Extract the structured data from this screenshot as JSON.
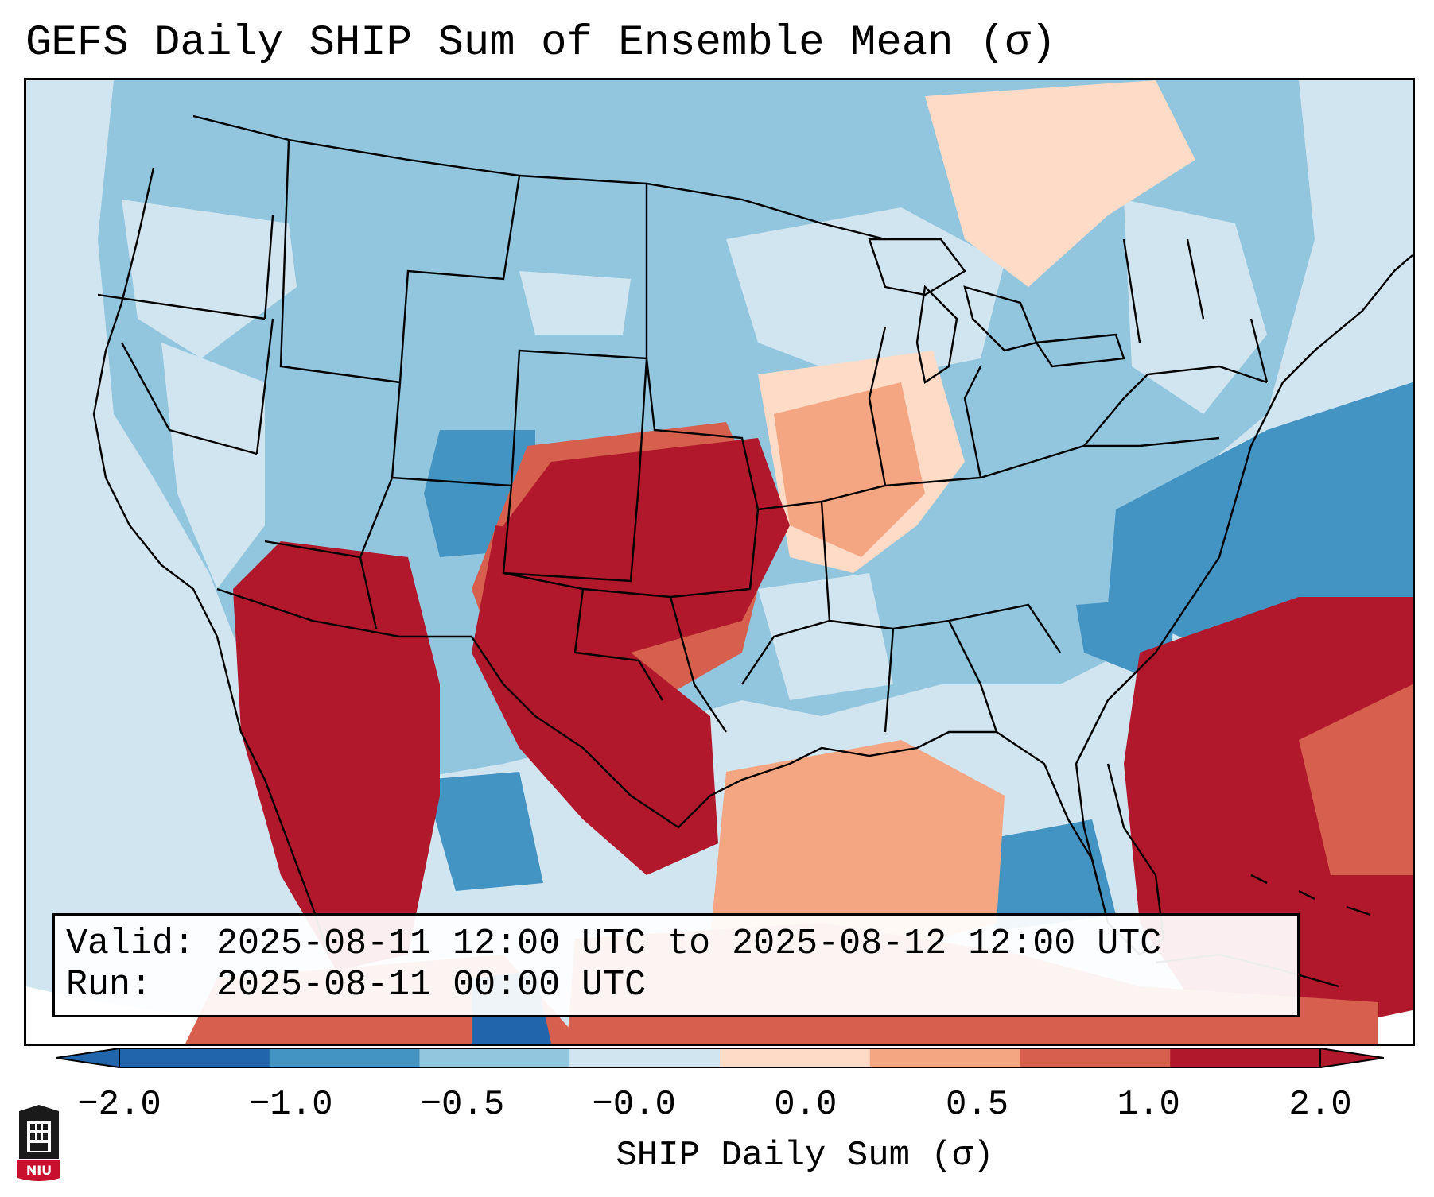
{
  "title": "GEFS Daily SHIP Sum of Ensemble Mean (σ)",
  "info": {
    "valid_label": "Valid:",
    "valid_value": "2025-08-11 12:00 UTC to 2025-08-12 12:00 UTC",
    "run_label": "Run:",
    "run_value": "2025-08-11 00:00 UTC"
  },
  "colorbar": {
    "label": "SHIP Daily Sum (σ)",
    "ticks": [
      "−2.0",
      "−1.0",
      "−0.5",
      "−0.0",
      "0.0",
      "0.5",
      "1.0",
      "2.0"
    ],
    "colors": [
      "#2166ac",
      "#4393c3",
      "#92c5de",
      "#d1e5f0",
      "#fddbc7",
      "#f4a582",
      "#d6604d",
      "#b2182b"
    ],
    "extend": "both"
  },
  "logo": {
    "text": "NIU",
    "colors": {
      "red": "#c8102e",
      "dark": "#1a1a1a"
    }
  }
}
